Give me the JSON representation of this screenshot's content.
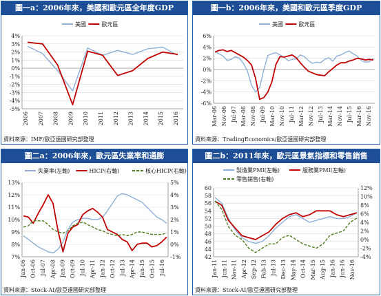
{
  "panels": [
    {
      "title": "圖一a：2006年來，美國和歐元區全年度GDP",
      "source": "資料來源：IMF/歐亞遠國研究部整理"
    },
    {
      "title": "圖一b：2006年來，美國和歐元區季度GDP",
      "source": "資料來源：TradingEconomics/歐亞遠國研究部整理"
    },
    {
      "title": "圖二a：2006年來，歐元區失業率和通膨",
      "source": "資料來源：Stock-AI/歐亞遠國研究部整理"
    },
    {
      "title": "圖二b：2011年來，歐元區景氣指標和零售銷售",
      "source": "資料來源：Stock-AI/歐亞遠國研究部整理"
    }
  ],
  "chart_data": [
    {
      "type": "line",
      "legend": [
        "美國",
        "歐元區"
      ],
      "colors": [
        "#8fafd6",
        "#c00000"
      ],
      "x": [
        "2006",
        "2007",
        "2008",
        "2009",
        "2010",
        "2011",
        "2012",
        "2013",
        "2014",
        "2015",
        "2016"
      ],
      "series": [
        {
          "name": "美國",
          "values": [
            2.7,
            1.8,
            -0.3,
            -2.8,
            2.5,
            1.6,
            2.2,
            1.7,
            2.4,
            2.6,
            1.6
          ]
        },
        {
          "name": "歐元區",
          "values": [
            3.2,
            3.0,
            0.4,
            -4.5,
            2.1,
            1.6,
            -0.9,
            -0.3,
            1.2,
            2.0,
            1.7
          ]
        }
      ],
      "ylim": [
        -5,
        4
      ],
      "yticks": [
        "-5%",
        "-4%",
        "-3%",
        "-2%",
        "-1%",
        "0%",
        "1%",
        "2%",
        "3%",
        "4%"
      ]
    },
    {
      "type": "line",
      "legend": [
        "美國",
        "歐元區"
      ],
      "colors": [
        "#8fafd6",
        "#c00000"
      ],
      "xticks": [
        "Mar-06",
        "Nov-06",
        "Jul-07",
        "Mar-08",
        "Nov-08",
        "Jul-09",
        "Mar-10",
        "Nov-10",
        "Jul-11",
        "Mar-12",
        "Nov-12",
        "Jul-13",
        "Mar-14",
        "Nov-14",
        "Jul-15",
        "Mar-16",
        "Nov-16"
      ],
      "series": [
        {
          "name": "美國",
          "values": [
            3.2,
            2.8,
            2.4,
            1.6,
            1.8,
            2.3,
            2.0,
            1.1,
            -0.3,
            -2.8,
            -4.0,
            -3.2,
            -0.1,
            2.5,
            2.8,
            3.0,
            2.6,
            2.2,
            1.6,
            1.8,
            1.9,
            2.6,
            2.3,
            1.6,
            1.1,
            1.3,
            1.2,
            1.8,
            2.1,
            1.5,
            2.4,
            2.6,
            3.0,
            3.3,
            2.8,
            2.4,
            1.6,
            1.3,
            1.4,
            2.0
          ]
        },
        {
          "name": "歐元區",
          "values": [
            3.1,
            3.4,
            3.5,
            3.2,
            3.4,
            3.0,
            2.6,
            2.2,
            1.6,
            0.8,
            -1.6,
            -5.3,
            -5.0,
            -4.0,
            -2.2,
            0.9,
            2.3,
            2.2,
            2.4,
            2.6,
            2.1,
            1.2,
            0.4,
            -0.3,
            -0.6,
            -0.9,
            -1.0,
            -1.1,
            -0.4,
            0.2,
            0.8,
            1.2,
            1.2,
            1.5,
            1.7,
            2.0,
            1.9,
            1.7,
            1.8,
            1.7
          ]
        }
      ],
      "ylim": [
        -6,
        6
      ],
      "yticks": [
        "-6%",
        "-4%",
        "-2%",
        "0%",
        "2%",
        "4%",
        "6%"
      ]
    },
    {
      "type": "line",
      "legend": [
        "失業率(左軸)",
        "HICP(右軸)",
        "核心HICP(右軸)"
      ],
      "colors": [
        "#8fafd6",
        "#c00000",
        "#4e7a1e"
      ],
      "xticks": [
        "Jan-06",
        "Oct-06",
        "Jul-07",
        "Apr-08",
        "Jan-09",
        "Oct-09",
        "Jul-10",
        "Apr-11",
        "Jan-12",
        "Oct-12",
        "Jul-13",
        "Apr-14",
        "Jan-15",
        "Oct-15",
        "Jul-16"
      ],
      "series": [
        {
          "name": "失業率(左軸)",
          "axis": "left",
          "values": [
            8.7,
            8.4,
            8.1,
            7.8,
            7.6,
            7.4,
            7.3,
            7.6,
            8.2,
            9.2,
            9.8,
            10.0,
            10.1,
            10.1,
            10.0,
            10.0,
            10.2,
            10.7,
            11.3,
            11.9,
            12.1,
            12.0,
            11.8,
            11.6,
            11.4,
            11.0,
            10.6,
            10.2,
            10.0,
            9.7
          ]
        },
        {
          "name": "HICP(右軸)",
          "axis": "right",
          "values": [
            2.3,
            2.2,
            1.7,
            2.5,
            3.2,
            4.0,
            3.3,
            1.1,
            -0.6,
            0.9,
            1.4,
            1.6,
            2.4,
            2.7,
            2.9,
            2.6,
            2.2,
            1.2,
            1.0,
            0.8,
            0.4,
            0.2,
            -0.5,
            0.0,
            0.1,
            0.1,
            -0.2,
            -0.1,
            0.2,
            0.6
          ]
        },
        {
          "name": "核心HICP(右軸)",
          "axis": "right",
          "values": [
            1.4,
            1.5,
            1.9,
            1.9,
            1.9,
            1.6,
            1.2,
            1.0,
            0.9,
            1.1,
            1.5,
            1.7,
            1.8,
            1.6,
            1.4,
            1.2,
            1.1,
            0.9,
            0.8,
            0.7,
            0.8,
            0.7,
            0.8,
            1.0,
            1.0,
            0.9,
            0.8,
            0.8,
            0.8,
            0.9
          ]
        }
      ],
      "ylim_left": [
        7,
        13
      ],
      "ylim_right": [
        -1,
        5
      ],
      "yticks_left": [
        "7%",
        "8%",
        "9%",
        "10%",
        "11%",
        "12%",
        "13%"
      ],
      "yticks_right": [
        "-1%",
        "0%",
        "1%",
        "2%",
        "3%",
        "4%",
        "5%"
      ]
    },
    {
      "type": "line",
      "legend": [
        "製造業PMI(左軸)",
        "服務業PMI(左軸)",
        "零售銷售(右軸)"
      ],
      "colors": [
        "#8fafd6",
        "#c00000",
        "#4e7a1e"
      ],
      "xticks": [
        "Jan-11",
        "Jun-11",
        "Nov-11",
        "Apr-12",
        "Sep-12",
        "Feb-13",
        "Jul-13",
        "Dec-13",
        "May-14",
        "Oct-14",
        "Mar-15",
        "Aug-15",
        "Jan-16",
        "Jun-16",
        "Nov-16"
      ],
      "series": [
        {
          "name": "製造業PMI(左軸)",
          "axis": "left",
          "values": [
            57.5,
            56.0,
            52.0,
            49.0,
            47.0,
            46.0,
            45.5,
            46.0,
            47.5,
            49.5,
            51.0,
            52.5,
            53.0,
            52.0,
            51.0,
            51.5,
            52.0,
            52.5,
            52.0,
            52.0,
            52.5,
            53.5
          ]
        },
        {
          "name": "服務業PMI(左軸)",
          "axis": "left",
          "values": [
            56.5,
            55.5,
            51.5,
            49.5,
            47.5,
            47.0,
            46.5,
            47.5,
            48.5,
            50.5,
            52.0,
            53.0,
            53.5,
            52.5,
            53.0,
            54.0,
            54.0,
            54.0,
            53.0,
            52.5,
            53.0,
            53.5
          ]
        },
        {
          "name": "零售銷售(右軸)",
          "axis": "right",
          "values": [
            9.0,
            7.0,
            3.0,
            1.0,
            0.0,
            -2.0,
            -3.0,
            -2.0,
            -1.0,
            -1.0,
            0.5,
            1.0,
            0.0,
            -1.0,
            -1.5,
            -2.0,
            -1.0,
            1.0,
            1.5,
            2.0,
            4.0,
            5.0
          ]
        }
      ],
      "ylim_left": [
        42,
        60
      ],
      "ylim_right": [
        -4,
        12
      ],
      "yticks_left": [
        "42",
        "44",
        "46",
        "48",
        "50",
        "52",
        "54",
        "56",
        "58",
        "60"
      ],
      "yticks_right": [
        "-4%",
        "-2%",
        "0%",
        "2%",
        "4%",
        "6%",
        "8%",
        "10%",
        "12%"
      ]
    }
  ]
}
